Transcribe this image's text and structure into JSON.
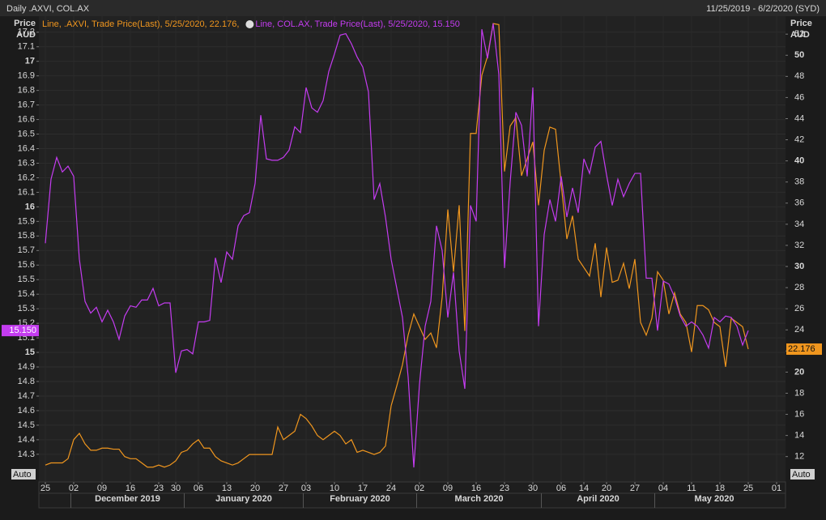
{
  "chart_data": {
    "type": "line",
    "title": "Daily .AXVI, COL.AX",
    "date_range": "11/25/2019 - 6/2/2020 (SYD)",
    "ylabel": "Price",
    "yunit": "AUD",
    "y2label": "Price",
    "y2unit": "AUD",
    "auto_left": "Auto",
    "auto_right": "Auto",
    "categories": [
      "25",
      null,
      null,
      null,
      null,
      "02",
      null,
      null,
      null,
      null,
      "09",
      null,
      null,
      null,
      null,
      "16",
      null,
      null,
      null,
      null,
      "23",
      null,
      null,
      "30",
      null,
      null,
      null,
      "06",
      null,
      null,
      null,
      null,
      "13",
      null,
      null,
      null,
      null,
      "20",
      null,
      null,
      null,
      null,
      "27",
      null,
      null,
      null,
      "03",
      null,
      null,
      null,
      null,
      "10",
      null,
      null,
      null,
      null,
      "17",
      null,
      null,
      null,
      null,
      "24",
      null,
      null,
      null,
      null,
      "02",
      null,
      null,
      null,
      null,
      "09",
      null,
      null,
      null,
      null,
      "16",
      null,
      null,
      null,
      null,
      "23",
      null,
      null,
      null,
      null,
      "30",
      null,
      null,
      null,
      null,
      "06",
      null,
      null,
      null,
      "14",
      null,
      null,
      null,
      "20",
      null,
      null,
      null,
      null,
      "27",
      null,
      null,
      null,
      null,
      "04",
      null,
      null,
      null,
      null,
      "11",
      null,
      null,
      null,
      null,
      "18",
      null,
      null,
      null,
      null,
      "25",
      null,
      null,
      null,
      null,
      "01"
    ],
    "months": [
      "December 2019",
      "January 2020",
      "February 2020",
      "March 2020",
      "April 2020",
      "May 2020"
    ],
    "series": [
      {
        "name": "COL.AX",
        "legend": "Line, COL.AX, Trade Price(Last), 5/25/2020, 15.150",
        "last_label": "15.150",
        "color": "#c43cf0",
        "axis": "y",
        "values": [
          15.75,
          16.19,
          16.34,
          16.24,
          16.28,
          16.21,
          15.64,
          15.35,
          15.27,
          15.31,
          15.21,
          15.29,
          15.21,
          15.09,
          15.25,
          15.32,
          15.31,
          15.36,
          15.36,
          15.44,
          15.32,
          15.34,
          15.34,
          14.86,
          15.01,
          15.02,
          14.99,
          15.21,
          15.21,
          15.22,
          15.65,
          15.48,
          15.69,
          15.64,
          15.87,
          15.94,
          15.96,
          16.16,
          16.63,
          16.33,
          16.32,
          16.32,
          16.34,
          16.39,
          16.55,
          16.51,
          16.82,
          16.68,
          16.65,
          16.73,
          16.93,
          17.05,
          17.18,
          17.19,
          17.12,
          17.03,
          16.96,
          16.79,
          16.05,
          16.16,
          15.93,
          15.64,
          15.44,
          15.24,
          14.83,
          14.21,
          14.78,
          15.18,
          15.35,
          15.87,
          15.7,
          15.24,
          15.55,
          15.01,
          14.75,
          16.01,
          15.9,
          17.22,
          17.02,
          17.26,
          16.91,
          15.58,
          16.17,
          16.65,
          16.56,
          16.21,
          16.82,
          15.18,
          15.81,
          16.05,
          15.9,
          16.21,
          15.93,
          16.13,
          15.96,
          16.33,
          16.23,
          16.41,
          16.45,
          16.22,
          16.01,
          16.19,
          16.07,
          16.16,
          16.23,
          16.23,
          15.51,
          15.51,
          15.15,
          15.49,
          15.47,
          15.38,
          15.25,
          15.18,
          15.21,
          15.18,
          15.12,
          15.03,
          15.24,
          15.21,
          15.25,
          15.24,
          15.18,
          15.05,
          15.15,
          null,
          null,
          null,
          null,
          null
        ]
      },
      {
        "name": ".AXVI",
        "legend": "Line, .AXVI, Trade Price(Last), 5/25/2020, 22.176,",
        "last_label": "22.176",
        "color": "#f0961e",
        "axis": "y2",
        "values": [
          11.2,
          11.4,
          11.4,
          11.4,
          11.8,
          13.6,
          14.2,
          13.2,
          12.6,
          12.6,
          12.8,
          12.8,
          12.7,
          12.7,
          12.0,
          11.8,
          11.8,
          11.4,
          11.0,
          11.0,
          11.2,
          11.0,
          11.2,
          11.6,
          12.4,
          12.6,
          13.2,
          13.6,
          12.8,
          12.8,
          12.0,
          11.6,
          11.4,
          11.2,
          11.4,
          11.8,
          12.2,
          12.2,
          12.2,
          12.2,
          12.2,
          14.8,
          13.6,
          14.0,
          14.4,
          16.0,
          15.6,
          14.9,
          14.0,
          13.6,
          14.0,
          14.4,
          14.0,
          13.2,
          13.6,
          12.4,
          12.6,
          12.4,
          12.2,
          12.4,
          13.0,
          16.8,
          18.7,
          20.7,
          23.5,
          25.5,
          24.3,
          23.1,
          23.7,
          22.3,
          27.1,
          35.4,
          29.5,
          35.8,
          23.9,
          42.6,
          42.6,
          48.1,
          49.9,
          53.0,
          52.9,
          39.0,
          43.3,
          44.1,
          38.6,
          40.2,
          41.8,
          35.8,
          41.0,
          43.2,
          43.0,
          37.8,
          32.6,
          34.8,
          30.7,
          29.9,
          29.1,
          32.2,
          27.1,
          31.8,
          28.5,
          28.7,
          30.3,
          27.9,
          30.7,
          24.7,
          23.5,
          25.1,
          29.5,
          28.7,
          25.5,
          27.5,
          25.5,
          24.7,
          21.9,
          26.3,
          26.3,
          25.9,
          24.7,
          24.3,
          20.5,
          25.1,
          24.7,
          24.3,
          22.176,
          null,
          null,
          null,
          null,
          null
        ]
      }
    ],
    "ylim": [
      14.11,
      17.31
    ],
    "yticks": [
      14.3,
      14.4,
      14.5,
      14.6,
      14.7,
      14.8,
      14.9,
      15,
      15.1,
      15.2,
      15.3,
      15.4,
      15.5,
      15.6,
      15.7,
      15.8,
      15.9,
      16,
      16.1,
      16.2,
      16.3,
      16.4,
      16.5,
      16.6,
      16.7,
      16.8,
      16.9,
      17,
      17.1,
      17.2
    ],
    "y2lim": [
      9.6,
      53.7
    ],
    "y2ticks": [
      12,
      14,
      16,
      18,
      20,
      22,
      24,
      26,
      28,
      30,
      32,
      34,
      36,
      38,
      40,
      42,
      44,
      46,
      48,
      50,
      52
    ],
    "grid": true
  }
}
